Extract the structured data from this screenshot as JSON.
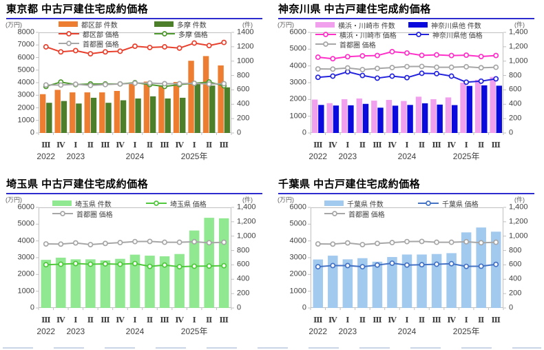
{
  "chart_data": {
    "type": "bar",
    "description": "Four combo bar+line charts of used detached house contract prices and transaction counts by quarter",
    "x_axis": {
      "quarters": [
        "Ⅲ",
        "Ⅳ",
        "Ⅰ",
        "Ⅱ",
        "Ⅲ",
        "Ⅳ",
        "Ⅰ",
        "Ⅱ",
        "Ⅲ",
        "Ⅳ",
        "Ⅰ",
        "Ⅱ",
        "Ⅲ"
      ],
      "years": [
        {
          "label": "2022",
          "slot": 0
        },
        {
          "label": "2023",
          "slot": 2
        },
        {
          "label": "2024",
          "slot": 6
        },
        {
          "label": "2025年",
          "slot": 10
        }
      ]
    },
    "charts": [
      {
        "id": "tokyo",
        "title": "東京都 中古戸建住宅成約価格",
        "left_axis": {
          "unit": "(万円)",
          "max": 8000,
          "labels": [
            "8000",
            "7000",
            "6000",
            "5000",
            "4000",
            "3000",
            "2000",
            "1000",
            "0"
          ]
        },
        "right_axis": {
          "unit": "(件)",
          "max": 1400,
          "labels": [
            "1400",
            "1200",
            "1000",
            "800",
            "600",
            "400",
            "200",
            "0"
          ]
        },
        "bar_series": [
          {
            "name": "都区部 件数",
            "color": "#ED7D31",
            "values": [
              540,
              600,
              565,
              565,
              565,
              585,
              690,
              715,
              650,
              710,
              1005,
              1070,
              940
            ]
          },
          {
            "name": "多摩 件数",
            "color": "#4D7E2A",
            "values": [
              420,
              445,
              410,
              490,
              420,
              455,
              480,
              510,
              480,
              490,
              680,
              660,
              635
            ]
          }
        ],
        "line_series": [
          {
            "name": "都区部 価格",
            "color": "#E8402C",
            "values": [
              6850,
              6450,
              6550,
              6300,
              6450,
              6500,
              6900,
              6800,
              6850,
              6750,
              7150,
              6950,
              7200
            ]
          },
          {
            "name": "多摩 価格",
            "color": "#4E9A2E",
            "values": [
              3700,
              4050,
              3850,
              3900,
              3900,
              3900,
              4000,
              3850,
              3700,
              3850,
              3950,
              4050,
              3750
            ]
          },
          {
            "name": "首都圏 価格",
            "color": "#A6A6A6",
            "values": [
              3820,
              3810,
              3880,
              3780,
              3850,
              3900,
              3960,
              3970,
              3920,
              3920,
              3950,
              3890,
              3920
            ]
          }
        ]
      },
      {
        "id": "kanagawa",
        "title": "神奈川県 中古戸建住宅成約価格",
        "left_axis": {
          "unit": "(万円)",
          "max": 6000,
          "labels": [
            "6000",
            "5000",
            "4000",
            "3000",
            "2000",
            "1000",
            "0"
          ]
        },
        "right_axis": {
          "unit": "(件)",
          "max": 1400,
          "labels": [
            "1,400",
            "1,200",
            "1,000",
            "800",
            "600",
            "400",
            "200",
            "0"
          ]
        },
        "bar_series": [
          {
            "name": "横浜・川崎市 件数",
            "color": "#F0A0EC",
            "values": [
              465,
              415,
              470,
              480,
              450,
              460,
              445,
              505,
              470,
              495,
              700,
              740,
              780
            ]
          },
          {
            "name": "神奈川県他 件数",
            "color": "#0A0ADC",
            "values": [
              390,
              382,
              385,
              405,
              352,
              380,
              390,
              413,
              395,
              388,
              655,
              663,
              658
            ]
          }
        ],
        "line_series": [
          {
            "name": "横浜・川崎市 価格",
            "color": "#FF30C8",
            "values": [
              4520,
              4430,
              4550,
              4600,
              4620,
              4850,
              4770,
              4630,
              4660,
              4620,
              4640,
              4560,
              4620
            ]
          },
          {
            "name": "神奈川県他 価格",
            "color": "#2323DD",
            "values": [
              3320,
              3390,
              3650,
              3430,
              3270,
              3390,
              3300,
              3560,
              3540,
              3390,
              3030,
              3090,
              3230
            ]
          },
          {
            "name": "首都圏 価格",
            "color": "#A6A6A6",
            "values": [
              3820,
              3810,
              3880,
              3780,
              3850,
              3900,
              3960,
              3970,
              3920,
              3920,
              3950,
              3890,
              3920
            ]
          }
        ]
      },
      {
        "id": "saitama",
        "title": "埼玉県 中古戸建住宅成約価格",
        "left_axis": {
          "unit": "(万円)",
          "max": 6000,
          "labels": [
            "6000",
            "5000",
            "4000",
            "3000",
            "2000",
            "1000",
            "0"
          ]
        },
        "right_axis": {
          "unit": "(件)",
          "max": 1400,
          "labels": [
            "1,400",
            "1,200",
            "1,000",
            "800",
            "600",
            "400",
            "200",
            "0"
          ]
        },
        "bar_series": [
          {
            "name": "埼玉県 件数",
            "color": "#90E890",
            "values": [
              670,
              700,
              677,
              677,
              663,
              684,
              742,
              728,
              719,
              751,
              1078,
              1255,
              1248
            ]
          }
        ],
        "line_series": [
          {
            "name": "埼玉県 価格",
            "color": "#4FC83C",
            "values": [
              2580,
              2610,
              2650,
              2610,
              2630,
              2610,
              2650,
              2480,
              2560,
              2460,
              2490,
              2500,
              2520
            ]
          },
          {
            "name": "首都圏 価格",
            "color": "#A6A6A6",
            "values": [
              3820,
              3810,
              3880,
              3780,
              3850,
              3900,
              3960,
              3970,
              3920,
              3920,
              3950,
              3890,
              3920
            ]
          }
        ]
      },
      {
        "id": "chiba",
        "title": "千葉県 中古戸建住宅成約価格",
        "left_axis": {
          "unit": "(万円)",
          "max": 6000,
          "labels": [
            "6000",
            "5000",
            "4000",
            "3000",
            "2000",
            "1000",
            "0"
          ]
        },
        "right_axis": {
          "unit": "(件)",
          "max": 1400,
          "labels": [
            "1,400",
            "1,200",
            "1,000",
            "800",
            "600",
            "400",
            "200",
            "0"
          ]
        },
        "bar_series": [
          {
            "name": "千葉県 件数",
            "color": "#A2C9EE",
            "values": [
              675,
              728,
              677,
              693,
              644,
              709,
              744,
              744,
              751,
              763,
              1052,
              1120,
              1062
            ]
          }
        ],
        "line_series": [
          {
            "name": "千葉県 価格",
            "color": "#4472C4",
            "values": [
              2460,
              2530,
              2530,
              2460,
              2560,
              2670,
              2560,
              2580,
              2610,
              2640,
              2480,
              2490,
              2600
            ]
          },
          {
            "name": "首都圏 価格",
            "color": "#A6A6A6",
            "values": [
              3820,
              3810,
              3880,
              3780,
              3850,
              3900,
              3960,
              3970,
              3920,
              3920,
              3950,
              3890,
              3920
            ]
          }
        ]
      }
    ]
  }
}
